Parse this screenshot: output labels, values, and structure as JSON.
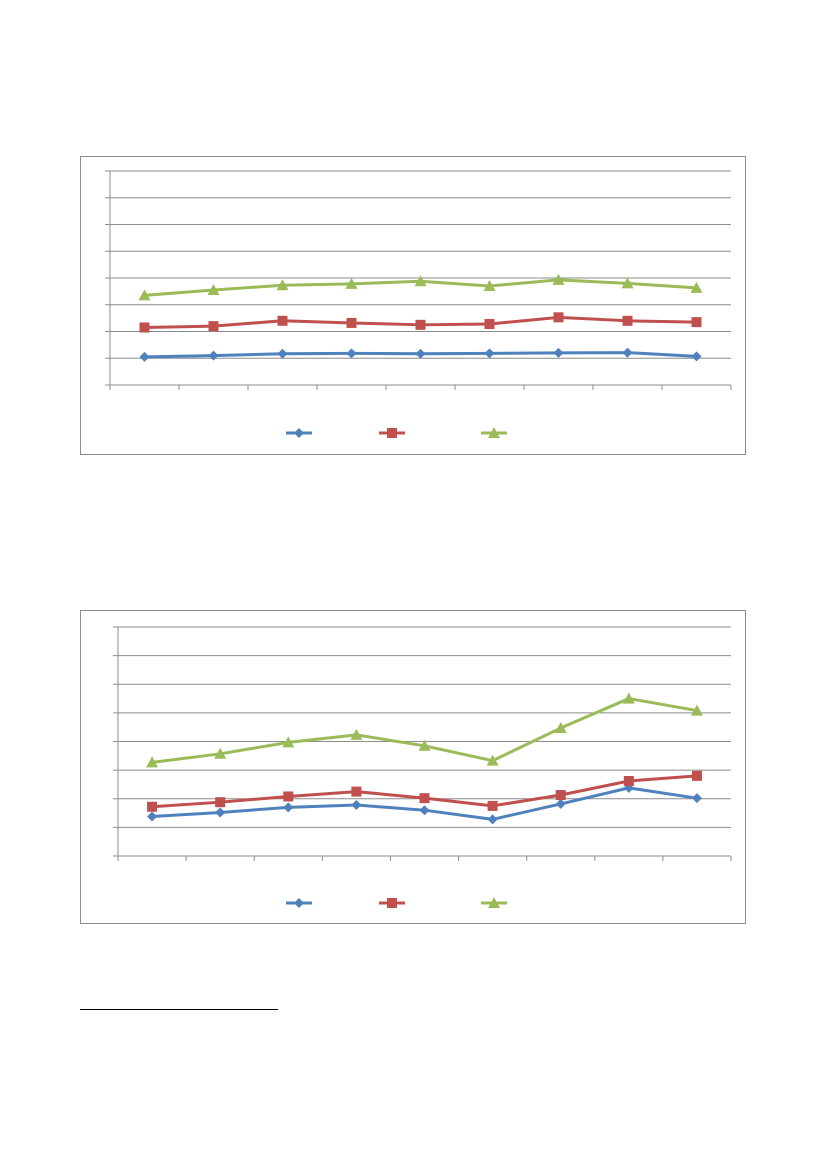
{
  "chart_data": [
    {
      "type": "line",
      "title": "",
      "xlabel": "",
      "ylabel": "",
      "categories": [
        "",
        "",
        "",
        "",
        "",
        "",
        "",
        "",
        ""
      ],
      "ylim": [
        0,
        8
      ],
      "grid": true,
      "legend_position": "bottom",
      "series": [
        {
          "color": "#4f81bd",
          "marker": "diamond",
          "values": [
            1.05,
            1.1,
            1.17,
            1.18,
            1.17,
            1.18,
            1.2,
            1.21,
            1.07
          ]
        },
        {
          "color": "#c0504d",
          "marker": "square",
          "values": [
            2.15,
            2.2,
            2.4,
            2.32,
            2.25,
            2.28,
            2.53,
            2.4,
            2.35
          ]
        },
        {
          "color": "#9bbb59",
          "marker": "triangle",
          "values": [
            3.35,
            3.55,
            3.73,
            3.78,
            3.88,
            3.7,
            3.93,
            3.8,
            3.63
          ]
        }
      ]
    },
    {
      "type": "line",
      "title": "",
      "xlabel": "",
      "ylabel": "",
      "categories": [
        "",
        "",
        "",
        "",
        "",
        "",
        "",
        "",
        ""
      ],
      "ylim": [
        0,
        8
      ],
      "grid": true,
      "legend_position": "bottom",
      "series": [
        {
          "color": "#4f81bd",
          "marker": "diamond",
          "values": [
            1.38,
            1.52,
            1.7,
            1.78,
            1.6,
            1.28,
            1.82,
            2.38,
            2.02
          ]
        },
        {
          "color": "#c0504d",
          "marker": "square",
          "values": [
            1.72,
            1.88,
            2.08,
            2.25,
            2.02,
            1.75,
            2.13,
            2.62,
            2.8
          ]
        },
        {
          "color": "#9bbb59",
          "marker": "triangle",
          "values": [
            3.27,
            3.57,
            3.97,
            4.23,
            3.85,
            3.33,
            4.47,
            5.5,
            5.08
          ]
        }
      ]
    }
  ]
}
